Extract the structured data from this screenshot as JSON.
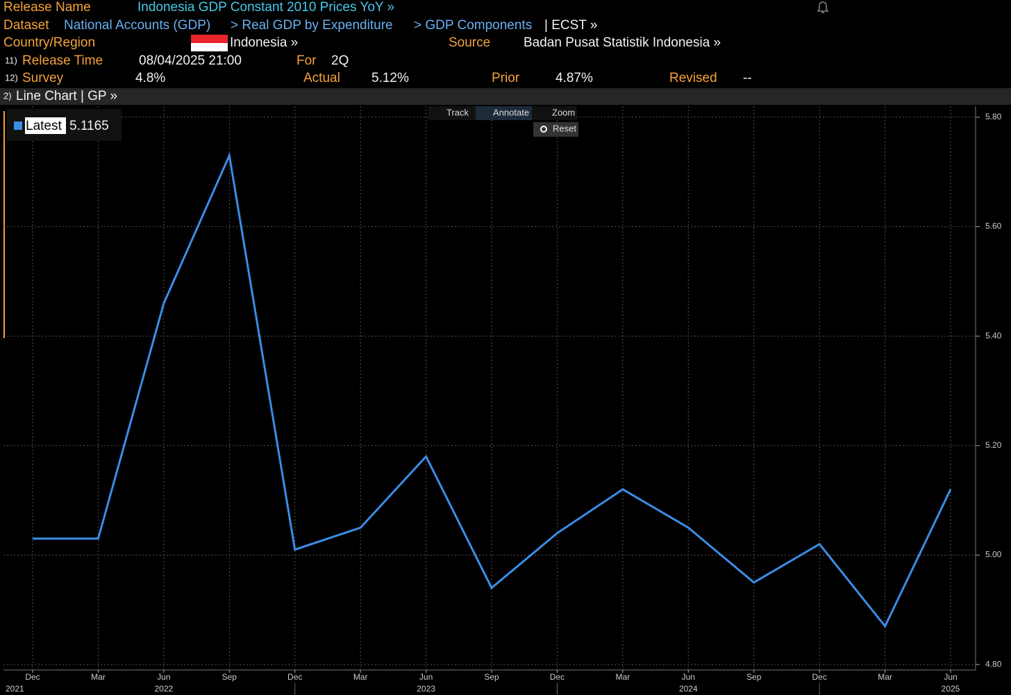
{
  "header": {
    "release_name_label": "Release Name",
    "release_name": "Indonesia GDP Constant 2010 Prices YoY »",
    "dataset_label": "Dataset",
    "dataset_path": [
      "National Accounts (GDP)",
      "> Real GDP by Expenditure",
      "> GDP Components"
    ],
    "dataset_ticker": "| ECST »",
    "country_label": "Country/Region",
    "country": "Indonesia »",
    "source_label": "Source",
    "source": "Badan Pusat Statistik Indonesia »",
    "release_time_num": "11)",
    "release_time_label": "Release Time",
    "release_time": "08/04/2025 21:00",
    "for_label": "For",
    "for_value": "2Q",
    "survey_num": "12)",
    "survey_label": "Survey",
    "survey": "4.8%",
    "actual_label": "Actual",
    "actual": "5.12%",
    "prior_label": "Prior",
    "prior": "4.87%",
    "revised_label": "Revised",
    "revised": "--"
  },
  "chart_bar": {
    "num": "2)",
    "title": "Line Chart | GP »"
  },
  "toolbar": {
    "track": "Track",
    "annotate": "Annotate",
    "zoom": "Zoom",
    "reset": "Reset"
  },
  "chart_data": {
    "type": "line",
    "categories": [
      "Dec",
      "Mar",
      "Jun",
      "Sep",
      "Dec",
      "Mar",
      "Jun",
      "Sep",
      "Dec",
      "Mar",
      "Jun",
      "Sep",
      "Dec",
      "Mar",
      "Jun"
    ],
    "year_labels": [
      "2021",
      null,
      "2022",
      null,
      null,
      null,
      "2023",
      null,
      null,
      null,
      "2024",
      null,
      null,
      null,
      "2025"
    ],
    "series": [
      {
        "name": "Latest",
        "color": "#3a8ee6",
        "values": [
          5.03,
          5.03,
          5.46,
          5.73,
          5.01,
          5.05,
          5.18,
          4.94,
          5.04,
          5.12,
          5.05,
          4.95,
          5.02,
          4.87,
          5.12
        ]
      }
    ],
    "legend_value": "5.1165",
    "ylim": [
      4.79,
      5.82
    ],
    "yticks": [
      {
        "value": 4.8,
        "label": "4.80"
      },
      {
        "value": 5.0,
        "label": "5.00"
      },
      {
        "value": 5.2,
        "label": "5.20"
      },
      {
        "value": 5.4,
        "label": "5.40"
      },
      {
        "value": 5.6,
        "label": "5.60"
      },
      {
        "value": 5.8,
        "label": "5.80"
      }
    ],
    "grid": true
  }
}
